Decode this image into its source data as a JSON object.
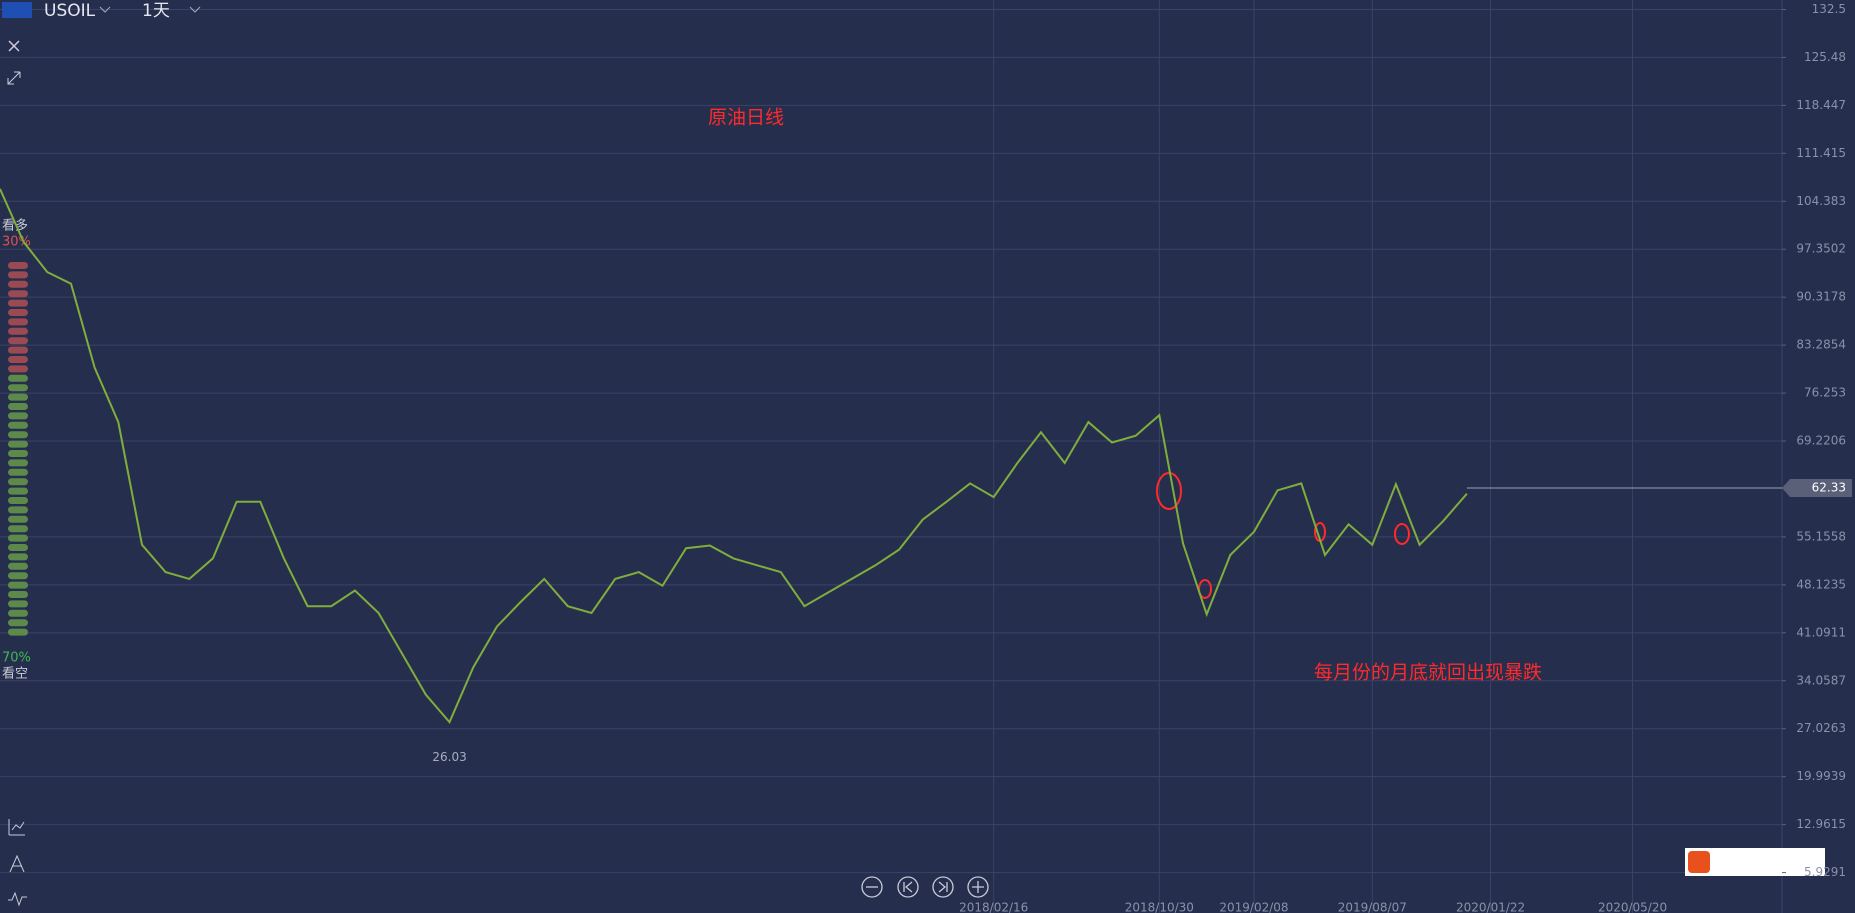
{
  "header": {
    "symbol": "USOIL",
    "interval": "1天"
  },
  "sentiment": {
    "bull_label": "看多",
    "bull_pct": "30%",
    "bear_pct": "70%",
    "bear_label": "看空"
  },
  "chart_data": {
    "type": "line",
    "annotations": [
      "原油日线",
      "每月份的月底就回出现暴跌"
    ],
    "low_label": 26.03,
    "last_price": 62.33,
    "categories": [
      null,
      null,
      null,
      null,
      null,
      null,
      null,
      null,
      null,
      null,
      null,
      null,
      null,
      null,
      null,
      null,
      null,
      null,
      null,
      null,
      null,
      null,
      null,
      null,
      null,
      null,
      null,
      null,
      null,
      null,
      null,
      null,
      null,
      null,
      null,
      null,
      null,
      null,
      null,
      null,
      null,
      null,
      "2018/02/16",
      null,
      null,
      null,
      null,
      null,
      null,
      "2018/10/30",
      null,
      null,
      null,
      "2019/02/08",
      null,
      null,
      null,
      null,
      "2019/08/07",
      null,
      null,
      null,
      null,
      "2020/01/22",
      null,
      null,
      null,
      null,
      null,
      "2020/05/20",
      null,
      null,
      null,
      null,
      null,
      null
    ],
    "series": [
      {
        "name": "USOIL",
        "color": "#7fae3c",
        "values": [
          106.2,
          98.4,
          94.0,
          92.3,
          80,
          72,
          54,
          50,
          49,
          52,
          60.3,
          60.3,
          52,
          45,
          45,
          47.3,
          44,
          38,
          32,
          28,
          36,
          42,
          45.6,
          49,
          45,
          44,
          49,
          50,
          48,
          53.5,
          53.9,
          52,
          51,
          50,
          45,
          47,
          49,
          51,
          53.3,
          57.7,
          60.3,
          63,
          61,
          66,
          70.5,
          66,
          72,
          69,
          70,
          73,
          54.2,
          43.8,
          52.5,
          55.9,
          62,
          63,
          52.5,
          57,
          54,
          62.9,
          54,
          57.5,
          61.5,
          null,
          null,
          null,
          null,
          null,
          null,
          null,
          null,
          null,
          null,
          null,
          null,
          null
        ]
      }
    ],
    "ylim": [
      0,
      133.9
    ],
    "yticks": [
      132.5,
      125.48,
      118.447,
      111.415,
      104.383,
      97.3502,
      90.3178,
      83.2854,
      76.253,
      69.2206,
      55.1558,
      48.1235,
      41.0911,
      34.0587,
      27.0263,
      19.9939,
      12.9615,
      5.9291
    ],
    "grid": true
  }
}
